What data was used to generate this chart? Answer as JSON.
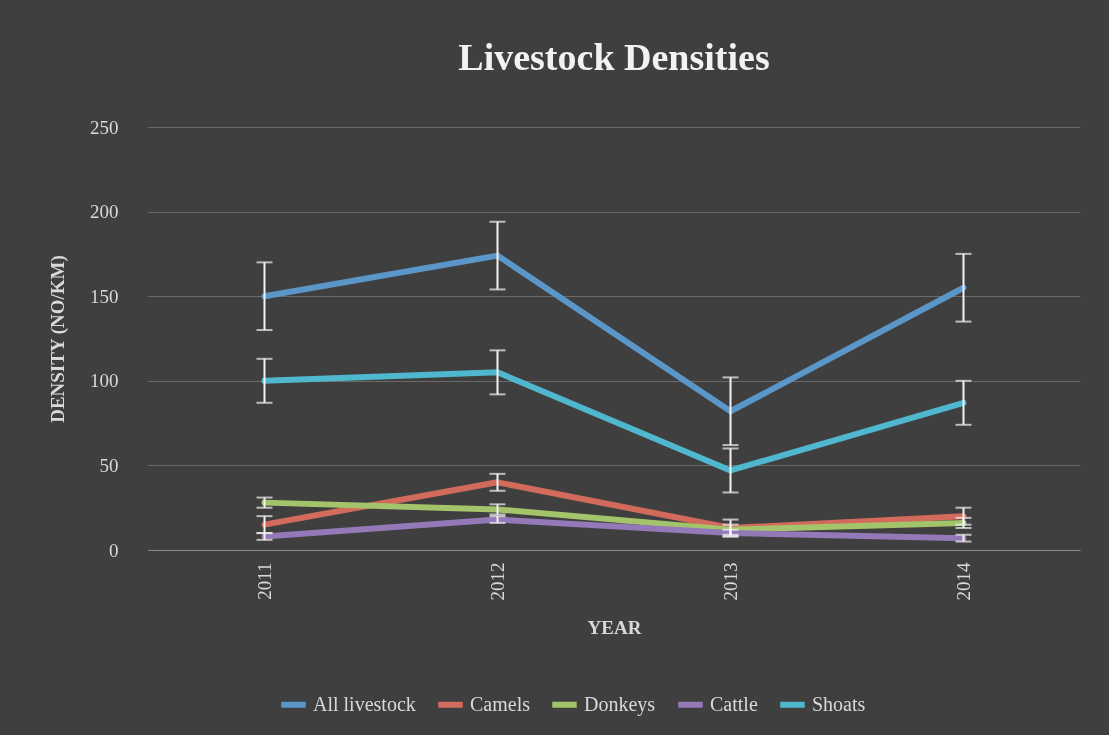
{
  "chart_data": {
    "type": "line",
    "title": "Livestock Densities",
    "xlabel": "YEAR",
    "ylabel": "DENSITY (NO/KM)",
    "categories": [
      "2011",
      "2012",
      "2013",
      "2014"
    ],
    "series": [
      {
        "name": "All livestock",
        "color": "#5b96c9",
        "values": [
          150,
          174,
          82,
          155
        ],
        "errors": [
          20,
          20,
          20,
          20
        ]
      },
      {
        "name": "Camels",
        "color": "#d36b5c",
        "values": [
          15,
          40,
          13,
          20
        ],
        "errors": [
          5,
          5,
          5,
          5
        ]
      },
      {
        "name": "Donkeys",
        "color": "#a3c46a",
        "values": [
          28,
          24,
          12,
          16
        ],
        "errors": [
          3,
          3,
          3,
          3
        ]
      },
      {
        "name": "Cattle",
        "color": "#9379b7",
        "values": [
          8,
          18,
          10,
          7
        ],
        "errors": [
          2,
          2,
          2,
          2
        ]
      },
      {
        "name": "Shoats",
        "color": "#4fb8cf",
        "values": [
          100,
          105,
          47,
          87
        ],
        "errors": [
          13,
          13,
          13,
          13
        ]
      }
    ],
    "ylim": [
      0,
      250
    ],
    "yticks": [
      0,
      50,
      100,
      150,
      200,
      250
    ],
    "grid": "y",
    "legend": "bottom",
    "line_style": "solid"
  }
}
